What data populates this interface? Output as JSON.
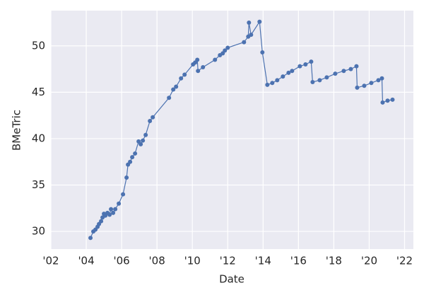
{
  "chart_data": {
    "type": "line",
    "xlabel": "Date",
    "ylabel": "BMeTric",
    "x": [
      2004.24,
      2004.4,
      2004.52,
      2004.64,
      2004.72,
      2004.84,
      2004.92,
      2005.0,
      2005.08,
      2005.2,
      2005.32,
      2005.4,
      2005.52,
      2005.64,
      2005.84,
      2006.08,
      2006.28,
      2006.36,
      2006.48,
      2006.6,
      2006.76,
      2006.96,
      2007.08,
      2007.2,
      2007.36,
      2007.6,
      2007.76,
      2008.68,
      2008.92,
      2009.08,
      2009.36,
      2009.56,
      2010.04,
      2010.16,
      2010.28,
      2010.32,
      2010.6,
      2011.28,
      2011.56,
      2011.72,
      2011.84,
      2012.0,
      2012.92,
      2013.16,
      2013.2,
      2013.32,
      2013.8,
      2013.96,
      2014.24,
      2014.52,
      2014.8,
      2015.12,
      2015.44,
      2015.64,
      2016.08,
      2016.4,
      2016.72,
      2016.8,
      2017.2,
      2017.6,
      2018.08,
      2018.56,
      2018.96,
      2019.28,
      2019.32,
      2019.72,
      2020.12,
      2020.52,
      2020.72,
      2020.76,
      2021.04,
      2021.32
    ],
    "series": [
      {
        "name": "BMeTric",
        "color": "#4c72b0",
        "values": [
          29.3,
          30.0,
          30.2,
          30.5,
          30.8,
          31.1,
          31.5,
          31.9,
          31.7,
          32.0,
          31.8,
          32.4,
          32.0,
          32.4,
          33.0,
          34.0,
          35.8,
          37.2,
          37.5,
          38.0,
          38.4,
          39.7,
          39.4,
          39.8,
          40.4,
          41.9,
          42.3,
          44.4,
          45.3,
          45.6,
          46.5,
          46.9,
          48.0,
          48.2,
          48.5,
          47.3,
          47.7,
          48.5,
          49.0,
          49.2,
          49.5,
          49.8,
          50.4,
          51.0,
          52.5,
          51.2,
          52.6,
          49.3,
          45.8,
          46.0,
          46.3,
          46.7,
          47.1,
          47.3,
          47.8,
          48.0,
          48.3,
          46.1,
          46.3,
          46.6,
          47.0,
          47.3,
          47.5,
          47.8,
          45.5,
          45.7,
          46.0,
          46.3,
          46.5,
          43.9,
          44.1,
          44.2
        ]
      }
    ],
    "xlim": [
      2002,
      2022.5
    ],
    "xticks": [
      {
        "value": 2002,
        "label": "'02"
      },
      {
        "value": 2004,
        "label": "'04"
      },
      {
        "value": 2006,
        "label": "'06"
      },
      {
        "value": 2008,
        "label": "'08"
      },
      {
        "value": 2010,
        "label": "'10"
      },
      {
        "value": 2012,
        "label": "'12"
      },
      {
        "value": 2014,
        "label": "'14"
      },
      {
        "value": 2016,
        "label": "'16"
      },
      {
        "value": 2018,
        "label": "'18"
      },
      {
        "value": 2020,
        "label": "'20"
      },
      {
        "value": 2022,
        "label": "'22"
      }
    ],
    "ylim": [
      28.1,
      53.8
    ],
    "yticks": [
      30,
      35,
      40,
      45,
      50
    ],
    "grid": true
  }
}
